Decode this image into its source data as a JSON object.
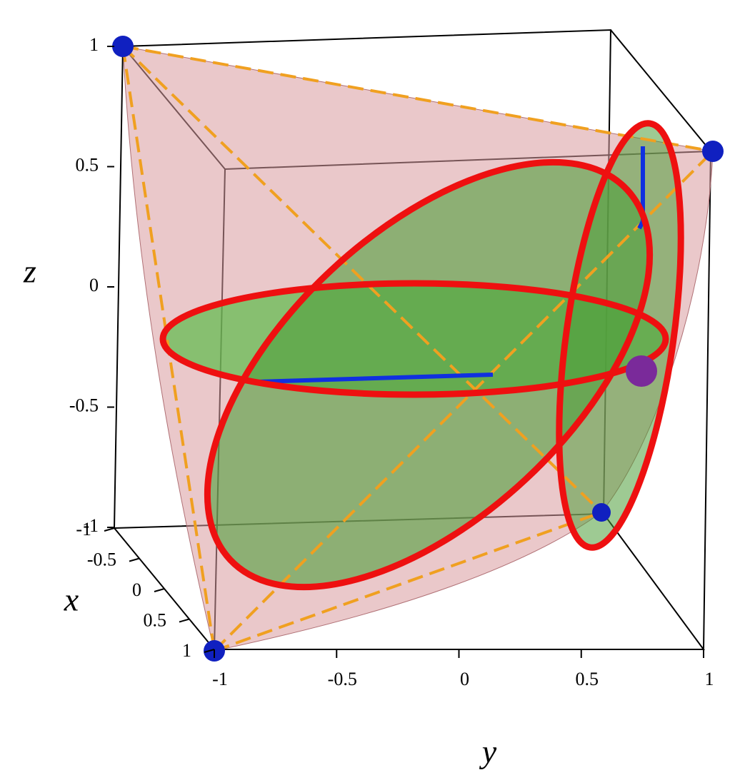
{
  "chart_data": {
    "type": "surface3d",
    "x_label": "x",
    "y_label": "y",
    "z_label": "z",
    "xlim": [
      -1,
      1
    ],
    "xticks": [
      -1,
      -0.5,
      0,
      0.5,
      1
    ],
    "ylim": [
      -1,
      1
    ],
    "yticks": [
      -1,
      -0.5,
      0,
      0.5,
      1
    ],
    "zlim": [
      -1,
      1
    ],
    "zticks": [
      -1,
      -0.5,
      0,
      0.5,
      1
    ]
  }
}
